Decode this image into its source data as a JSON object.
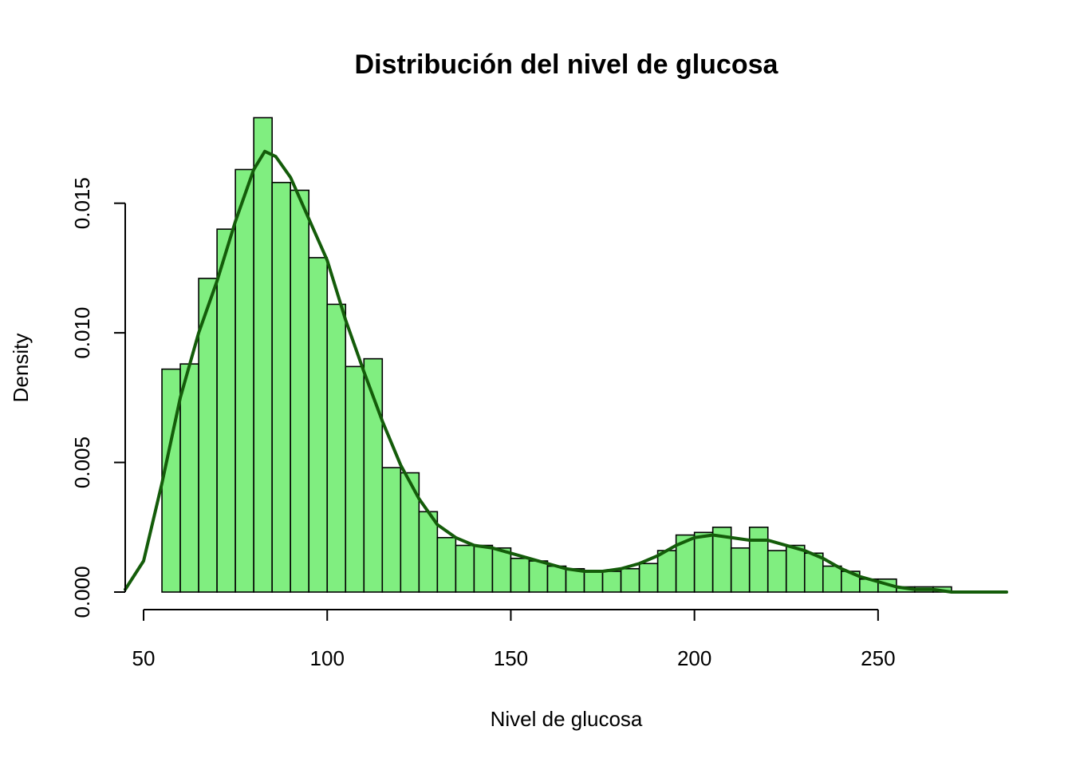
{
  "chart_data": {
    "type": "bar",
    "title": "Distribución del nivel de glucosa",
    "xlabel": "Nivel de glucosa",
    "ylabel": "Density",
    "xlim": [
      45,
      285
    ],
    "ylim": [
      0,
      0.0185
    ],
    "xticks": [
      50,
      100,
      150,
      200,
      250
    ],
    "xtick_labels": [
      "50",
      "100",
      "150",
      "200",
      "250"
    ],
    "yticks": [
      0,
      0.005,
      0.01,
      0.015
    ],
    "ytick_labels": [
      "0.000",
      "0.005",
      "0.010",
      "0.015"
    ],
    "grid": false,
    "bar_color": "#80EE80",
    "edge_color": "#000000",
    "line_color": "#145C0A",
    "histogram": {
      "bin_width": 5,
      "bin_start": [
        55,
        60,
        65,
        70,
        75,
        80,
        85,
        90,
        95,
        100,
        105,
        110,
        115,
        120,
        125,
        130,
        135,
        140,
        145,
        150,
        155,
        160,
        165,
        170,
        175,
        180,
        185,
        190,
        195,
        200,
        205,
        210,
        215,
        220,
        225,
        230,
        235,
        240,
        245,
        250,
        255,
        260,
        265,
        270
      ],
      "density": [
        0.0086,
        0.0088,
        0.0121,
        0.014,
        0.0163,
        0.0183,
        0.0158,
        0.0155,
        0.0129,
        0.0111,
        0.0087,
        0.009,
        0.0048,
        0.0046,
        0.0031,
        0.0021,
        0.0018,
        0.0018,
        0.0017,
        0.0013,
        0.0012,
        0.001,
        0.0009,
        0.0008,
        0.0008,
        0.0009,
        0.0011,
        0.0016,
        0.0022,
        0.0023,
        0.0025,
        0.0017,
        0.0025,
        0.0016,
        0.0018,
        0.0015,
        0.001,
        0.0008,
        0.0005,
        0.0005,
        0.0002,
        0.0002,
        0.0002,
        0.0
      ]
    },
    "density_curve": {
      "x": [
        45,
        50,
        55,
        60,
        65,
        70,
        75,
        80,
        83,
        86,
        90,
        95,
        100,
        105,
        110,
        115,
        120,
        125,
        130,
        135,
        140,
        145,
        150,
        155,
        160,
        165,
        170,
        175,
        180,
        185,
        190,
        195,
        200,
        205,
        210,
        215,
        220,
        225,
        230,
        235,
        240,
        245,
        250,
        255,
        260,
        265,
        270,
        275,
        280,
        285
      ],
      "y": [
        0.0001,
        0.0012,
        0.0042,
        0.0075,
        0.01,
        0.012,
        0.0143,
        0.0163,
        0.017,
        0.0168,
        0.016,
        0.0144,
        0.0128,
        0.0105,
        0.0085,
        0.0066,
        0.0049,
        0.0036,
        0.0026,
        0.0021,
        0.0018,
        0.0017,
        0.0015,
        0.0013,
        0.0011,
        0.0009,
        0.0008,
        0.0008,
        0.0009,
        0.0011,
        0.0014,
        0.0018,
        0.0021,
        0.0022,
        0.0021,
        0.002,
        0.002,
        0.0018,
        0.0016,
        0.0013,
        0.0009,
        0.0006,
        0.0004,
        0.0002,
        0.0001,
        0.0001,
        0.0,
        0.0,
        0.0,
        0.0
      ]
    }
  }
}
